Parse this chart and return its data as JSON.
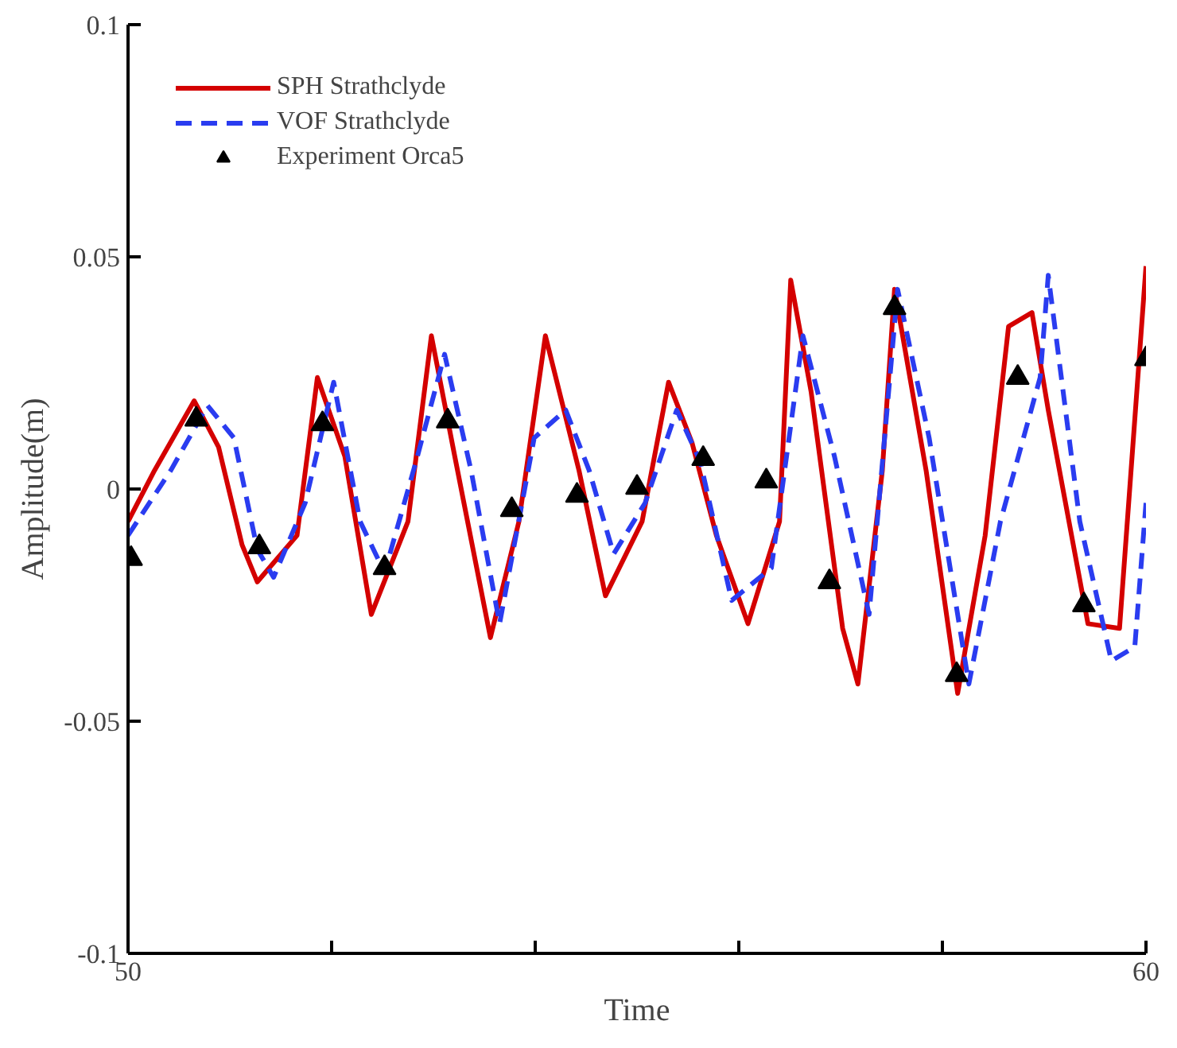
{
  "chart_data": {
    "type": "line",
    "xlabel": "Time",
    "ylabel": "Amplitude(m)",
    "xlim": [
      50,
      60
    ],
    "ylim": [
      -0.1,
      0.1
    ],
    "xticks": [
      50,
      {
        "value": 52,
        "label": null
      },
      {
        "value": 54,
        "label": null
      },
      {
        "value": 56,
        "label": null
      },
      {
        "value": 58,
        "label": null
      },
      60
    ],
    "yticks": [
      -0.1,
      -0.05,
      0,
      0.05,
      0.1
    ],
    "grid": false,
    "legend": "top left",
    "series": [
      {
        "name": "SPH Strathclyde",
        "color": "#d40000",
        "line_style": "solid",
        "marker": "none",
        "x": [
          50.0,
          50.26,
          50.65,
          50.89,
          51.12,
          51.27,
          51.66,
          51.86,
          52.13,
          52.39,
          52.75,
          52.98,
          53.21,
          53.56,
          53.84,
          54.1,
          54.43,
          54.69,
          55.05,
          55.31,
          55.54,
          55.78,
          56.09,
          56.4,
          56.51,
          56.71,
          57.02,
          57.17,
          57.41,
          57.53,
          57.84,
          58.15,
          58.42,
          58.65,
          58.88,
          59.04,
          59.43,
          59.74,
          60.0
        ],
        "values": [
          -0.007,
          0.004,
          0.019,
          0.009,
          -0.012,
          -0.02,
          -0.01,
          0.024,
          0.007,
          -0.027,
          -0.007,
          0.033,
          0.007,
          -0.032,
          -0.007,
          0.033,
          0.004,
          -0.023,
          -0.007,
          0.023,
          0.01,
          -0.01,
          -0.029,
          -0.007,
          0.045,
          0.021,
          -0.03,
          -0.042,
          0.004,
          0.043,
          0.004,
          -0.044,
          -0.01,
          0.035,
          0.038,
          0.017,
          -0.029,
          -0.03,
          0.048
        ]
      },
      {
        "name": "VOF Strathclyde",
        "color": "#2a3cf0",
        "line_style": "dashed",
        "marker": "none",
        "x": [
          50.0,
          50.42,
          50.78,
          51.04,
          51.27,
          51.43,
          51.74,
          52.02,
          52.28,
          52.52,
          52.83,
          53.11,
          53.37,
          53.65,
          53.99,
          54.3,
          54.53,
          54.77,
          55.08,
          55.39,
          55.62,
          55.93,
          56.32,
          56.63,
          56.94,
          57.28,
          57.56,
          57.87,
          58.26,
          58.57,
          58.96,
          59.04,
          59.35,
          59.66,
          59.89,
          60.0
        ],
        "values": [
          -0.01,
          0.004,
          0.018,
          0.011,
          -0.013,
          -0.019,
          -0.003,
          0.023,
          -0.007,
          -0.018,
          0.006,
          0.029,
          0.004,
          -0.029,
          0.011,
          0.017,
          0.004,
          -0.014,
          -0.003,
          0.017,
          0.006,
          -0.024,
          -0.017,
          0.033,
          0.007,
          -0.027,
          0.043,
          0.011,
          -0.042,
          -0.007,
          0.024,
          0.046,
          -0.007,
          -0.037,
          -0.034,
          -0.003
        ]
      },
      {
        "name": "Experiment Orca5",
        "color": "#000000",
        "type": "scatter",
        "marker": "triangle",
        "x": [
          50.03,
          50.67,
          51.29,
          51.91,
          52.52,
          53.14,
          53.77,
          54.41,
          55.0,
          55.65,
          56.27,
          56.89,
          57.53,
          58.14,
          58.74,
          59.39,
          60.0
        ],
        "values": [
          -0.015,
          0.015,
          -0.0125,
          0.014,
          -0.017,
          0.0146,
          -0.0045,
          -0.0014,
          0.0003,
          0.0065,
          0.0017,
          -0.02,
          0.039,
          -0.04,
          0.024,
          -0.025,
          0.028
        ]
      }
    ]
  }
}
